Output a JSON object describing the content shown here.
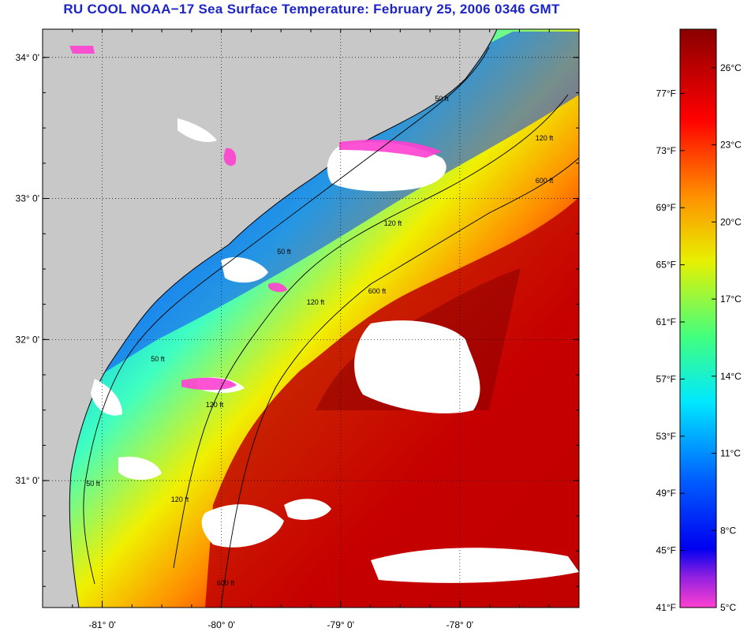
{
  "title": "RU COOL  NOAA−17  Sea Surface Temperature:  February 25, 2006 0346 GMT",
  "map": {
    "lon_range": [
      -81.5,
      -77.0
    ],
    "lat_range": [
      30.1,
      34.2
    ],
    "lon_ticks": [
      {
        "value": -81,
        "label": "-81° 0'"
      },
      {
        "value": -80,
        "label": "-80° 0'"
      },
      {
        "value": -79,
        "label": "-79° 0'"
      },
      {
        "value": -78,
        "label": "-78° 0'"
      }
    ],
    "lat_ticks": [
      {
        "value": 34,
        "label": "34° 0'"
      },
      {
        "value": 33,
        "label": "33° 0'"
      },
      {
        "value": 32,
        "label": "32° 0'"
      },
      {
        "value": 31,
        "label": "31° 0'"
      }
    ],
    "land_color": "#c8c8c8",
    "cloud_color": "#ffffff",
    "grid": "dotted",
    "isobath_labels": [
      "50 ft",
      "120 ft",
      "600 ft"
    ]
  },
  "colorbar": {
    "min_c": 5,
    "max_c": 27.5,
    "celsius_labels": [
      "26°C",
      "23°C",
      "20°C",
      "17°C",
      "14°C",
      "11°C",
      "8°C",
      "5°C"
    ],
    "celsius_values": [
      26,
      23,
      20,
      17,
      14,
      11,
      8,
      5
    ],
    "fahrenheit_labels": [
      "77°F",
      "73°F",
      "69°F",
      "65°F",
      "61°F",
      "57°F",
      "53°F",
      "49°F",
      "45°F",
      "41°F"
    ],
    "fahrenheit_values": [
      77,
      73,
      69,
      65,
      61,
      57,
      53,
      49,
      45,
      41
    ],
    "stops": [
      {
        "c": 5,
        "color": "#ff40d0"
      },
      {
        "c": 6.2,
        "color": "#9020e0"
      },
      {
        "c": 7.3,
        "color": "#0000f0"
      },
      {
        "c": 10,
        "color": "#0060ff"
      },
      {
        "c": 13,
        "color": "#00e8ff"
      },
      {
        "c": 15.5,
        "color": "#40ff80"
      },
      {
        "c": 18.5,
        "color": "#e8f000"
      },
      {
        "c": 21,
        "color": "#ff9000"
      },
      {
        "c": 24,
        "color": "#ff0000"
      },
      {
        "c": 27.5,
        "color": "#8a0000"
      }
    ]
  }
}
